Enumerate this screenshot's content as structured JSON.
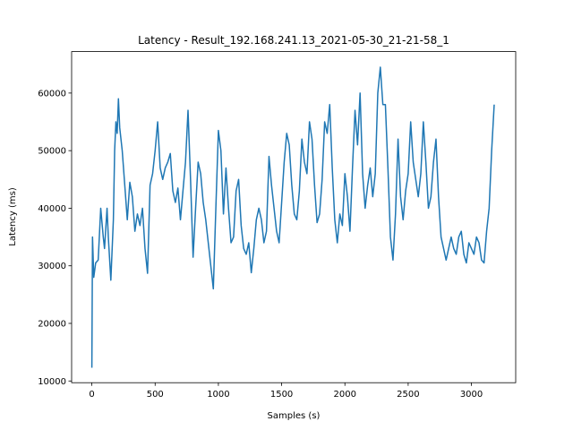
{
  "chart_data": {
    "type": "line",
    "title": "Latency - Result_192.168.241.13_2021-05-30_21-21-58_1",
    "x_label": "Samples  (s)",
    "y_label": "Latency (ms)",
    "xlim": [
      -160,
      3350
    ],
    "ylim": [
      9700,
      67200
    ],
    "xticks": [
      0,
      500,
      1000,
      1500,
      2000,
      2500,
      3000
    ],
    "yticks": [
      10000,
      20000,
      30000,
      40000,
      50000,
      60000
    ],
    "x": [
      0,
      5,
      15,
      30,
      50,
      70,
      90,
      100,
      120,
      130,
      150,
      170,
      180,
      190,
      200,
      210,
      220,
      240,
      260,
      280,
      300,
      320,
      340,
      360,
      380,
      400,
      420,
      440,
      460,
      480,
      500,
      520,
      540,
      560,
      580,
      600,
      620,
      640,
      660,
      680,
      700,
      720,
      740,
      760,
      780,
      800,
      820,
      840,
      860,
      880,
      900,
      920,
      940,
      960,
      980,
      1000,
      1020,
      1040,
      1060,
      1080,
      1100,
      1120,
      1140,
      1160,
      1180,
      1200,
      1220,
      1240,
      1260,
      1280,
      1300,
      1320,
      1340,
      1360,
      1380,
      1400,
      1420,
      1440,
      1460,
      1480,
      1500,
      1520,
      1540,
      1560,
      1580,
      1600,
      1620,
      1640,
      1660,
      1680,
      1700,
      1720,
      1740,
      1760,
      1780,
      1800,
      1820,
      1840,
      1860,
      1880,
      1900,
      1920,
      1940,
      1960,
      1980,
      2000,
      2020,
      2040,
      2060,
      2080,
      2100,
      2120,
      2140,
      2160,
      2180,
      2200,
      2220,
      2240,
      2260,
      2280,
      2300,
      2320,
      2340,
      2360,
      2380,
      2400,
      2420,
      2440,
      2460,
      2480,
      2500,
      2520,
      2540,
      2560,
      2580,
      2600,
      2620,
      2640,
      2660,
      2680,
      2700,
      2720,
      2740,
      2760,
      2780,
      2800,
      2820,
      2840,
      2860,
      2880,
      2900,
      2920,
      2940,
      2960,
      2980,
      3000,
      3020,
      3040,
      3060,
      3080,
      3100,
      3120,
      3140,
      3160,
      3180
    ],
    "series": [
      {
        "name": "Latency",
        "color": "#1f77b4",
        "values": [
          12300,
          35000,
          28000,
          30500,
          31000,
          40000,
          35000,
          33000,
          40000,
          35000,
          27500,
          38000,
          50000,
          55000,
          53000,
          59000,
          54000,
          50000,
          44000,
          38000,
          44500,
          42000,
          36000,
          39000,
          37000,
          40000,
          33000,
          28700,
          44000,
          46000,
          50000,
          55000,
          47000,
          45000,
          47000,
          48000,
          49500,
          43000,
          41000,
          43500,
          38000,
          43000,
          48000,
          57000,
          45000,
          31500,
          40000,
          48000,
          46000,
          41000,
          38000,
          34000,
          30000,
          26000,
          40000,
          53500,
          50000,
          39000,
          47000,
          40000,
          34000,
          35000,
          43000,
          45000,
          37000,
          33000,
          32000,
          34000,
          28800,
          33000,
          38000,
          40000,
          38000,
          34000,
          36000,
          49000,
          44000,
          40000,
          36000,
          34000,
          41000,
          48000,
          53000,
          51000,
          44000,
          39000,
          38000,
          43000,
          52000,
          48000,
          46000,
          55000,
          52000,
          44000,
          37500,
          39000,
          45000,
          55000,
          53000,
          58000,
          47000,
          38000,
          34000,
          39000,
          37000,
          46000,
          42000,
          36000,
          47000,
          57000,
          51000,
          60000,
          46000,
          40000,
          44000,
          47000,
          42000,
          46000,
          60000,
          64500,
          58000,
          58000,
          47000,
          35000,
          31000,
          39000,
          52000,
          42000,
          38000,
          43000,
          46000,
          55000,
          48000,
          45000,
          42000,
          46000,
          55000,
          48000,
          40000,
          42000,
          48000,
          52000,
          42000,
          35000,
          33000,
          31000,
          33000,
          35000,
          33000,
          32000,
          35000,
          36000,
          32000,
          30500,
          34000,
          33000,
          32000,
          35000,
          34000,
          31000,
          30500,
          36000,
          40000,
          50000,
          58000
        ]
      }
    ]
  }
}
